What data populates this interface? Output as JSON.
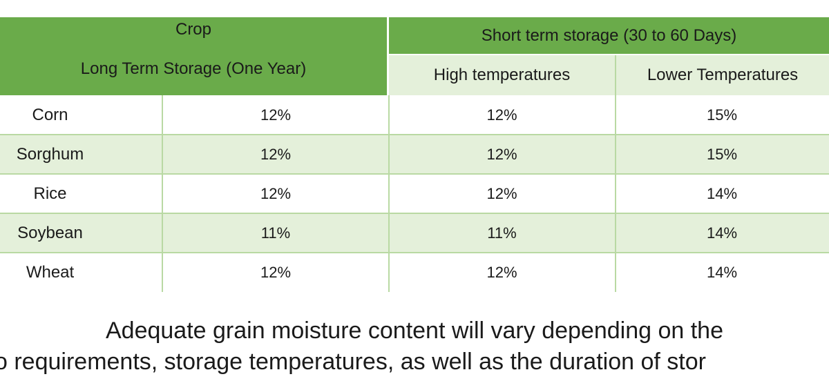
{
  "table": {
    "header": {
      "crop": "Crop",
      "long_term": "Long Term Storage (One Year)",
      "short_term": "Short term storage (30 to 60 Days)",
      "high_temp": "High temperatures",
      "low_temp": "Lower Temperatures"
    },
    "rows": [
      {
        "crop": "Corn",
        "long": "12%",
        "high": "12%",
        "low": "15%"
      },
      {
        "crop": "Sorghum",
        "long": "12%",
        "high": "12%",
        "low": "15%"
      },
      {
        "crop": "Rice",
        "long": "12%",
        "high": "12%",
        "low": "14%"
      },
      {
        "crop": "Soybean",
        "long": "11%",
        "high": "11%",
        "low": "14%"
      },
      {
        "crop": "Wheat",
        "long": "12%",
        "high": "12%",
        "low": "14%"
      }
    ]
  },
  "caption": {
    "line1": "Adequate grain moisture content will vary depending on the",
    "line2": "o requirements, storage temperatures, as well as the duration of stor"
  },
  "colors": {
    "header_green": "#6aab4a",
    "light_green": "#e4f0da",
    "grid_line": "#b9d9a3"
  }
}
